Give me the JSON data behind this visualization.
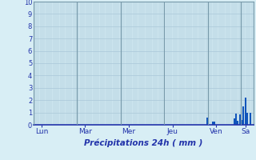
{
  "title": "Précipitations 24h ( mm )",
  "ylabel_values": [
    0,
    1,
    2,
    3,
    4,
    5,
    6,
    7,
    8,
    9,
    10
  ],
  "ylim": [
    0,
    10
  ],
  "background_color": "#d8eef5",
  "plot_bg_color": "#d8eef5",
  "inner_bg_color": "#cce4ee",
  "grid_color_h": "#aac8d8",
  "grid_color_v": "#aac8d8",
  "bar_color": "#1155bb",
  "num_bars": 120,
  "day_labels": [
    "Lun",
    "Mar",
    "Mer",
    "Jeu",
    "Ven",
    "Sa"
  ],
  "day_tick_positions": [
    4,
    28,
    52,
    76,
    100,
    116
  ],
  "day_line_positions": [
    0,
    24,
    48,
    72,
    96,
    114
  ],
  "xlabel": "Précipitations 24h ( mm )",
  "bar_values": [
    0,
    0,
    0,
    0,
    0,
    0,
    0,
    0,
    0,
    0,
    0,
    0,
    0,
    0,
    0,
    0,
    0,
    0,
    0,
    0,
    0,
    0,
    0,
    0,
    0,
    0,
    0,
    0,
    0,
    0,
    0,
    0,
    0,
    0,
    0,
    0,
    0,
    0,
    0,
    0,
    0,
    0,
    0,
    0,
    0,
    0,
    0,
    0,
    0,
    0,
    0,
    0,
    0,
    0,
    0,
    0,
    0,
    0,
    0,
    0,
    0,
    0,
    0,
    0,
    0,
    0,
    0,
    0,
    0,
    0,
    0,
    0,
    0,
    0,
    0,
    0,
    0,
    0,
    0,
    0,
    0,
    0,
    0,
    0,
    0,
    0,
    0,
    0,
    0,
    0,
    0,
    0,
    0,
    0,
    0,
    0.6,
    0,
    0,
    0.25,
    0.25,
    0,
    0,
    0,
    0,
    0,
    0,
    0,
    0,
    0,
    0,
    0.5,
    0.9,
    0.35,
    0.85,
    0.4,
    1.5,
    2.2,
    1.0,
    0,
    1.0,
    0
  ]
}
